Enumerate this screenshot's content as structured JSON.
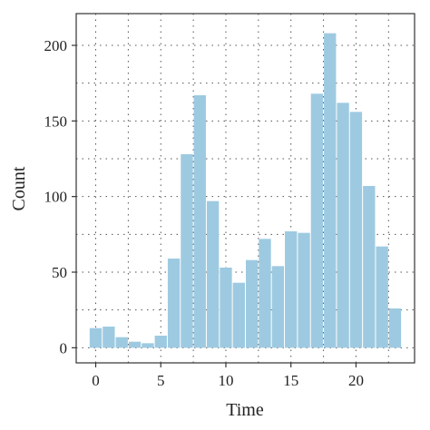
{
  "chart_data": {
    "type": "bar",
    "title": "",
    "xlabel": "Time",
    "ylabel": "Count",
    "x": [
      0,
      1,
      2,
      3,
      4,
      5,
      6,
      7,
      8,
      9,
      10,
      11,
      12,
      13,
      14,
      15,
      16,
      17,
      18,
      19,
      20,
      21,
      22,
      23
    ],
    "values": [
      13,
      14,
      7,
      4,
      3,
      8,
      59,
      128,
      167,
      97,
      53,
      43,
      58,
      72,
      54,
      77,
      76,
      168,
      208,
      162,
      156,
      107,
      67,
      26
    ],
    "xlim": [
      -1.5,
      24.5
    ],
    "ylim": [
      -10,
      221
    ],
    "xticks": [
      0,
      5,
      10,
      15,
      20
    ],
    "xtick_labels": [
      "0",
      "5",
      "10",
      "15",
      "20"
    ],
    "yticks": [
      0,
      50,
      100,
      150,
      200
    ],
    "ytick_labels": [
      "0",
      "50",
      "100",
      "150",
      "200"
    ],
    "grid": true,
    "grid_style": "dotted",
    "bar_color": "#9ecae1"
  }
}
